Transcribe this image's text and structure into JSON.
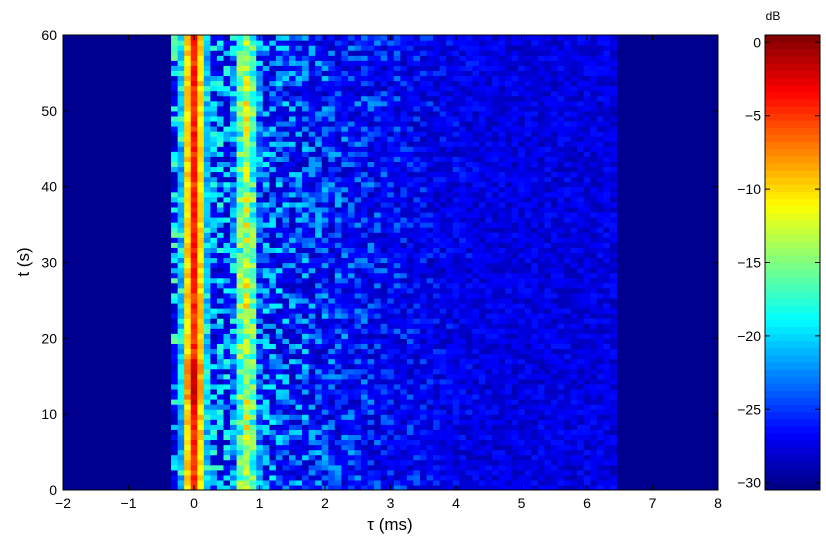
{
  "chart_data": {
    "type": "heatmap",
    "xlabel": "τ (ms)",
    "ylabel": "t (s)",
    "xlim": [
      -2,
      8
    ],
    "ylim": [
      0,
      60
    ],
    "x_ticks": [
      "−2",
      "−1",
      "0",
      "1",
      "2",
      "3",
      "4",
      "5",
      "6",
      "7",
      "8"
    ],
    "y_ticks": [
      "0",
      "10",
      "20",
      "30",
      "40",
      "50",
      "60"
    ],
    "colorbar": {
      "unit": "dB",
      "range": [
        -30.5,
        0.5
      ],
      "ticks": [
        "0",
        "−5",
        "−10",
        "−15",
        "−20",
        "−25",
        "−30"
      ],
      "colormap": "jet"
    },
    "features": {
      "main_ridge_tau_ms": 0,
      "main_ridge_level_db": -3,
      "secondary_ridge_tau_ms": 0.8,
      "secondary_ridge_level_db": -9,
      "scatter_extent_tau_ms": [
        -0.35,
        6.35
      ],
      "floor_level_db": -29
    },
    "grid": false
  }
}
